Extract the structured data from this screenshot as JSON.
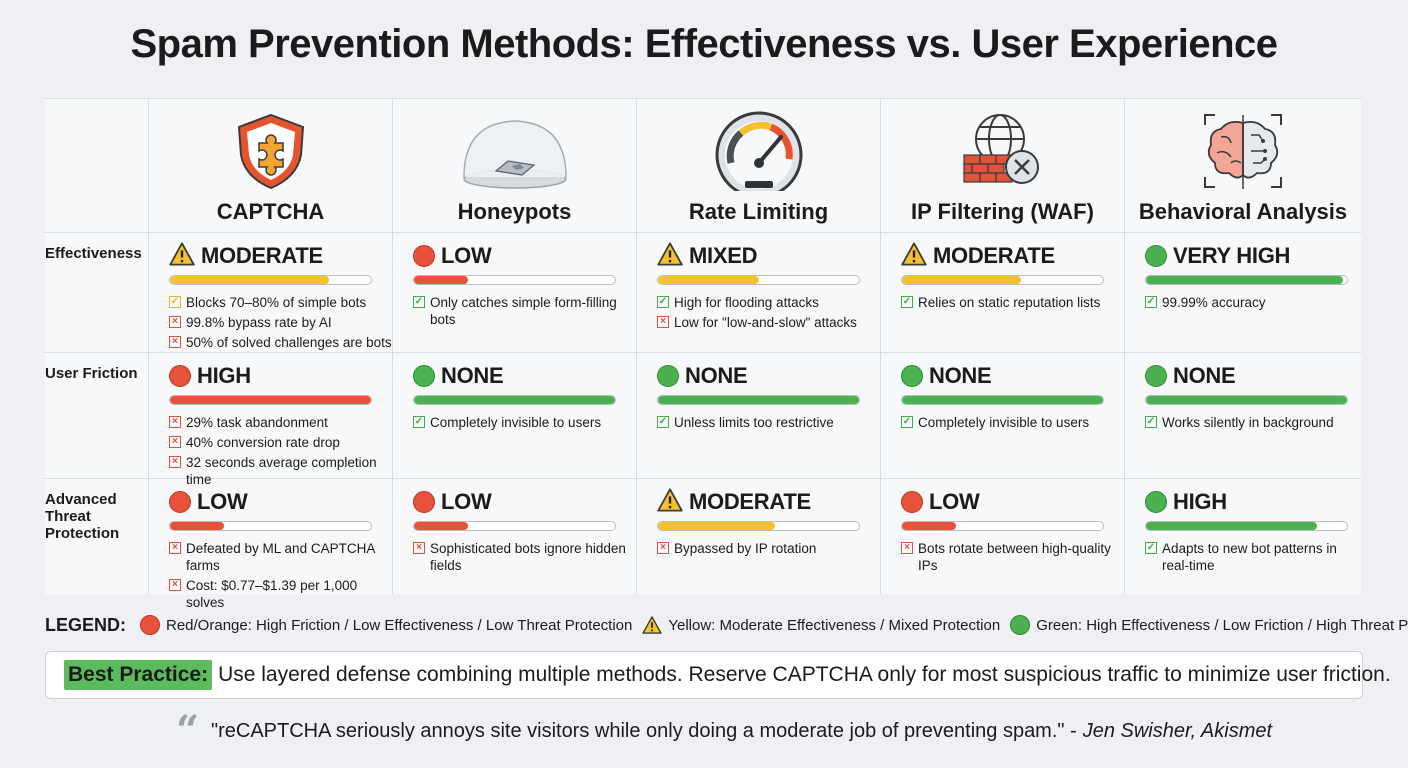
{
  "title": "Spam Prevention Methods: Effectiveness vs. User Experience",
  "colors": {
    "red": "#e8523b",
    "yellow": "#f3c12d",
    "green": "#4caf50"
  },
  "methods": [
    {
      "name": "CAPTCHA",
      "icon": "shield-puzzle-icon"
    },
    {
      "name": "Honeypots",
      "icon": "glass-dome-icon"
    },
    {
      "name": "Rate Limiting",
      "icon": "speedometer-icon"
    },
    {
      "name": "IP Filtering (WAF)",
      "icon": "globe-firewall-icon"
    },
    {
      "name": "Behavioral Analysis",
      "icon": "brain-scan-icon"
    }
  ],
  "rows": [
    {
      "label": "Effectiveness",
      "cells": [
        {
          "rating": "MODERATE",
          "level": "yellow",
          "fill": 0.79,
          "notes": [
            {
              "mark": "check-yellow",
              "text": "Blocks 70–80% of simple bots"
            },
            {
              "mark": "cross",
              "text": "99.8% bypass rate by AI"
            },
            {
              "mark": "cross",
              "text": "50% of solved challenges are bots"
            }
          ]
        },
        {
          "rating": "LOW",
          "level": "red",
          "fill": 0.27,
          "notes": [
            {
              "mark": "check",
              "text": "Only catches simple form-filling bots"
            }
          ]
        },
        {
          "rating": "MIXED",
          "level": "yellow",
          "fill": 0.5,
          "notes": [
            {
              "mark": "check",
              "text": "High for flooding attacks"
            },
            {
              "mark": "cross",
              "text": "Low for \"low-and-slow\" attacks"
            }
          ]
        },
        {
          "rating": "MODERATE",
          "level": "yellow",
          "fill": 0.59,
          "notes": [
            {
              "mark": "check",
              "text": "Relies on static reputation lists"
            }
          ]
        },
        {
          "rating": "VERY HIGH",
          "level": "green",
          "fill": 0.98,
          "notes": [
            {
              "mark": "check",
              "text": "99.99% accuracy"
            }
          ]
        }
      ]
    },
    {
      "label": "User Friction",
      "cells": [
        {
          "rating": "HIGH",
          "level": "red",
          "fill": 1.0,
          "notes": [
            {
              "mark": "cross",
              "text": "29% task abandonment"
            },
            {
              "mark": "cross",
              "text": "40% conversion rate drop"
            },
            {
              "mark": "cross",
              "text": "32 seconds average completion time"
            }
          ]
        },
        {
          "rating": "NONE",
          "level": "green",
          "fill": 1.0,
          "notes": [
            {
              "mark": "check",
              "text": "Completely invisible to users"
            }
          ]
        },
        {
          "rating": "NONE",
          "level": "green",
          "fill": 1.0,
          "notes": [
            {
              "mark": "check",
              "text": "Unless limits too restrictive"
            }
          ]
        },
        {
          "rating": "NONE",
          "level": "green",
          "fill": 1.0,
          "notes": [
            {
              "mark": "check",
              "text": "Completely invisible to users"
            }
          ]
        },
        {
          "rating": "NONE",
          "level": "green",
          "fill": 1.0,
          "notes": [
            {
              "mark": "check",
              "text": "Works silently in background"
            }
          ]
        }
      ]
    },
    {
      "label": "Advanced Threat Protection",
      "cells": [
        {
          "rating": "LOW",
          "level": "red",
          "fill": 0.27,
          "notes": [
            {
              "mark": "cross",
              "text": "Defeated by ML and CAPTCHA farms"
            },
            {
              "mark": "cross",
              "text": "Cost: $0.77–$1.39 per 1,000 solves"
            }
          ]
        },
        {
          "rating": "LOW",
          "level": "red",
          "fill": 0.27,
          "notes": [
            {
              "mark": "cross",
              "text": "Sophisticated bots ignore hidden fields"
            }
          ]
        },
        {
          "rating": "MODERATE",
          "level": "yellow",
          "fill": 0.58,
          "notes": [
            {
              "mark": "cross",
              "text": "Bypassed by IP rotation"
            }
          ]
        },
        {
          "rating": "LOW",
          "level": "red",
          "fill": 0.27,
          "notes": [
            {
              "mark": "cross",
              "text": "Bots rotate between high-quality IPs"
            }
          ]
        },
        {
          "rating": "HIGH",
          "level": "green",
          "fill": 0.85,
          "notes": [
            {
              "mark": "check",
              "text": "Adapts to new bot patterns in real-time"
            }
          ]
        }
      ]
    }
  ],
  "legend": {
    "heading": "LEGEND:",
    "items": [
      {
        "level": "red",
        "text": "Red/Orange: High Friction / Low Effectiveness / Low Threat Protection"
      },
      {
        "level": "yellow",
        "text": "Yellow: Moderate Effectiveness / Mixed Protection"
      },
      {
        "level": "green",
        "text": "Green: High Effectiveness / Low Friction / High Threat Protection"
      }
    ]
  },
  "best_practice": {
    "label": "Best Practice:",
    "text": "Use layered defense combining multiple methods. Reserve CAPTCHA only for most suspicious traffic to minimize user friction."
  },
  "quote": {
    "text": "\"reCAPTCHA seriously annoys site visitors while only doing a moderate job of preventing spam.\" -",
    "author": "Jen Swisher, Akismet"
  }
}
